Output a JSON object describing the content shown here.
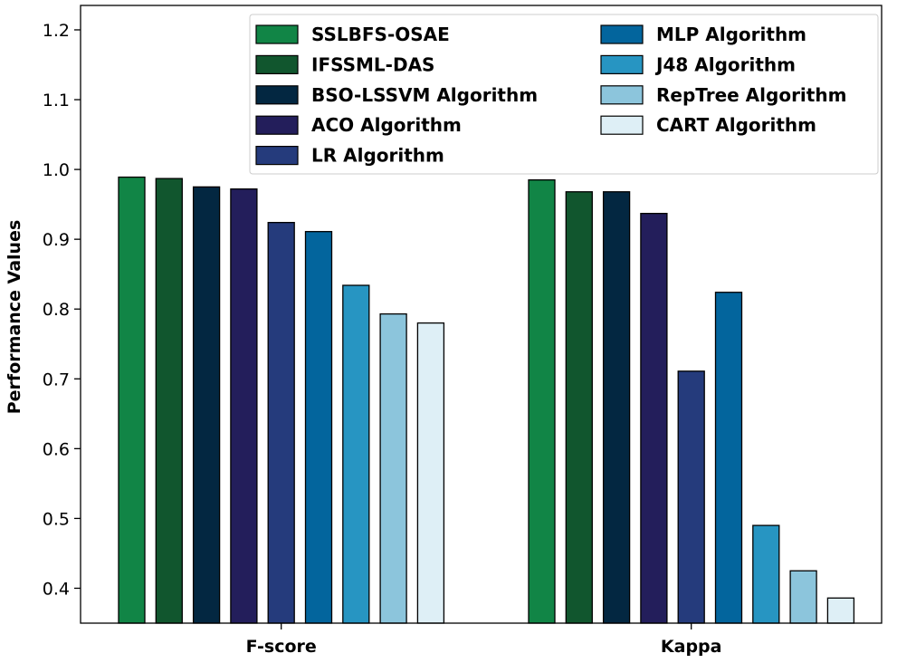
{
  "chart_data": {
    "type": "bar",
    "title": "",
    "xlabel": "",
    "ylabel": "Performance Values",
    "ylim": [
      0.35,
      1.235
    ],
    "yticks": [
      "0.4",
      "0.5",
      "0.6",
      "0.7",
      "0.8",
      "0.9",
      "1.0",
      "1.1",
      "1.2"
    ],
    "ytick_values": [
      0.4,
      0.5,
      0.6,
      0.7,
      0.8,
      0.9,
      1.0,
      1.1,
      1.2
    ],
    "categories": [
      "F-score",
      "Kappa"
    ],
    "legend_position": "top-right",
    "series": [
      {
        "name": "SSLBFS-OSAE",
        "color": "#118546",
        "values": [
          0.989,
          0.985
        ]
      },
      {
        "name": "IFSSML-DAS",
        "color": "#11562e",
        "values": [
          0.987,
          0.968
        ]
      },
      {
        "name": "BSO-LSSVM Algorithm",
        "color": "#032741",
        "values": [
          0.975,
          0.968
        ]
      },
      {
        "name": "ACO Algorithm",
        "color": "#231e5b",
        "values": [
          0.972,
          0.937
        ]
      },
      {
        "name": "LR Algorithm",
        "color": "#253b7c",
        "values": [
          0.924,
          0.711
        ]
      },
      {
        "name": "MLP Algorithm",
        "color": "#03659d",
        "values": [
          0.911,
          0.824
        ]
      },
      {
        "name": "J48 Algorithm",
        "color": "#2795c2",
        "values": [
          0.834,
          0.49
        ]
      },
      {
        "name": "RepTree Algorithm",
        "color": "#8cc5dc",
        "values": [
          0.793,
          0.425
        ]
      },
      {
        "name": "CART Algorithm",
        "color": "#deeff6",
        "values": [
          0.78,
          0.386
        ]
      }
    ]
  }
}
